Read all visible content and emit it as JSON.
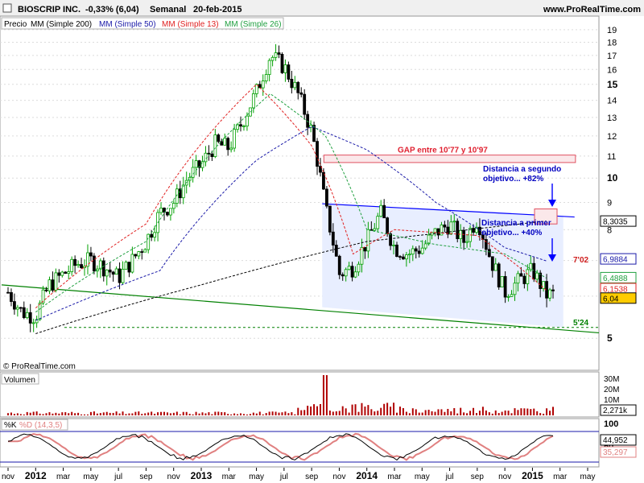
{
  "header": {
    "title": "BIOSCRIP INC.",
    "change": "-0,33% (6,04)",
    "period": "Semanal",
    "date": "20-feb-2015",
    "site": "www.ProRealTime.com"
  },
  "legend": {
    "price": "Precio",
    "ma200": "MM (Simple 200)",
    "ma50": "MM (Simple 50)",
    "ma13": "MM (Simple 13)",
    "ma26": "MM (Simple 26)"
  },
  "watermark": "© ProRealTime.com",
  "colors": {
    "up": "#00a000",
    "down": "#000000",
    "ma200": "#000000",
    "ma50": "#1a1aa8",
    "ma13": "#e02020",
    "ma26": "#20a040",
    "channel_fill": "#e8eeff",
    "gap_fill": "#fbe8ea",
    "gap_border": "#e05060",
    "volume_bar": "#b00000",
    "stoch_k": "#000000",
    "stoch_d": "#e08080",
    "annot_text": "#0000c0",
    "arrow": "#0000ff",
    "grid": "#dcdcdc"
  },
  "annotations": {
    "gap": "GAP entre 10'77 y 10'97",
    "target2_line1": "Distancia a segundo",
    "target2_line2": "objetivo... +82%",
    "target1_line1": "Distancia a primer",
    "target1_line2": "objetivo... +40%",
    "level_702": "7'02",
    "level_524": "5'24"
  },
  "price_labels": {
    "ma200": "8,3035",
    "ma50": "6,9884",
    "ma26": "6,4888",
    "ma13": "6,1538",
    "last": "6,04"
  },
  "volume_panel": {
    "title": "Volumen",
    "ticks": [
      "30M",
      "20M",
      "10M"
    ],
    "last": "2,271k"
  },
  "stoch_panel": {
    "title_k": "%K",
    "title_d": "%D (14,3,5)",
    "ticks": [
      "100",
      "50"
    ],
    "k_last": "44,952",
    "d_last": "35,297"
  },
  "chart_data": {
    "type": "candlestick",
    "symbol": "BIOSCRIP INC.",
    "y_axis": {
      "scale": "log",
      "ticks": [
        5,
        6,
        7,
        8,
        9,
        10,
        11,
        12,
        13,
        14,
        15,
        16,
        17,
        18,
        19
      ],
      "range": [
        4.7,
        19.6
      ]
    },
    "x_axis": {
      "start": "2011-11",
      "end": "2015-05",
      "ticks": [
        "nov",
        "2012",
        "mar",
        "may",
        "jul",
        "sep",
        "nov",
        "2013",
        "mar",
        "may",
        "jul",
        "sep",
        "nov",
        "2014",
        "mar",
        "may",
        "jul",
        "sep",
        "nov",
        "2015",
        "mar",
        "may"
      ]
    },
    "close_path": [
      [
        "2011-11",
        6.1
      ],
      [
        "2011-12",
        5.6
      ],
      [
        "2012-01",
        5.5
      ],
      [
        "2012-02",
        6.3
      ],
      [
        "2012-03",
        6.6
      ],
      [
        "2012-04",
        6.9
      ],
      [
        "2012-05",
        7.0
      ],
      [
        "2012-06",
        6.8
      ],
      [
        "2012-07",
        6.5
      ],
      [
        "2012-08",
        7.0
      ],
      [
        "2012-09",
        7.6
      ],
      [
        "2012-10",
        8.6
      ],
      [
        "2012-11",
        9.0
      ],
      [
        "2012-12",
        10.0
      ],
      [
        "2013-01",
        10.6
      ],
      [
        "2013-02",
        11.6
      ],
      [
        "2013-03",
        11.4
      ],
      [
        "2013-04",
        12.8
      ],
      [
        "2013-05",
        14.5
      ],
      [
        "2013-06",
        17.0
      ],
      [
        "2013-07",
        16.2
      ],
      [
        "2013-08",
        14.4
      ],
      [
        "2013-09",
        12.2
      ],
      [
        "2013-10",
        8.8
      ],
      [
        "2013-11",
        6.6
      ],
      [
        "2013-12",
        6.8
      ],
      [
        "2014-01",
        7.6
      ],
      [
        "2014-02",
        8.6
      ],
      [
        "2014-03",
        7.4
      ],
      [
        "2014-04",
        7.2
      ],
      [
        "2014-05",
        7.4
      ],
      [
        "2014-06",
        7.9
      ],
      [
        "2014-07",
        8.2
      ],
      [
        "2014-08",
        7.6
      ],
      [
        "2014-09",
        8.4
      ],
      [
        "2014-10",
        7.0
      ],
      [
        "2014-11",
        6.1
      ],
      [
        "2014-12",
        6.4
      ],
      [
        "2015-01",
        6.7
      ],
      [
        "2015-02",
        6.04
      ]
    ],
    "moving_averages": [
      {
        "name": "MM (Simple 200)",
        "points": [
          [
            "2012-01",
            5.1
          ],
          [
            "2013-01",
            6.3
          ],
          [
            "2014-01",
            7.6
          ],
          [
            "2015-02",
            8.3035
          ]
        ]
      },
      {
        "name": "MM (Simple 50)",
        "points": [
          [
            "2012-01",
            5.4
          ],
          [
            "2012-10",
            6.7
          ],
          [
            "2013-05",
            10.8
          ],
          [
            "2013-09",
            12.5
          ],
          [
            "2014-01",
            11.3
          ],
          [
            "2014-06",
            9.0
          ],
          [
            "2014-11",
            7.4
          ],
          [
            "2015-02",
            6.9884
          ]
        ]
      },
      {
        "name": "MM (Simple 26)",
        "points": [
          [
            "2012-01",
            5.6
          ],
          [
            "2012-09",
            7.6
          ],
          [
            "2013-06",
            14.4
          ],
          [
            "2013-10",
            12.0
          ],
          [
            "2014-01",
            8.0
          ],
          [
            "2014-06",
            7.5
          ],
          [
            "2014-11",
            7.2
          ],
          [
            "2015-02",
            6.4888
          ]
        ]
      },
      {
        "name": "MM (Simple 13)",
        "points": [
          [
            "2012-01",
            5.7
          ],
          [
            "2012-09",
            8.2
          ],
          [
            "2013-05",
            15.0
          ],
          [
            "2013-09",
            11.5
          ],
          [
            "2013-12",
            7.2
          ],
          [
            "2014-03",
            8.0
          ],
          [
            "2014-09",
            7.8
          ],
          [
            "2015-02",
            6.1538
          ]
        ]
      }
    ],
    "levels": [
      {
        "label": "7'02",
        "value": 7.02
      },
      {
        "label": "5'24",
        "value": 5.24
      }
    ],
    "gap": {
      "label": "GAP entre 10'77 y 10'97",
      "low": 10.77,
      "high": 10.97
    },
    "last_price": 6.04
  }
}
